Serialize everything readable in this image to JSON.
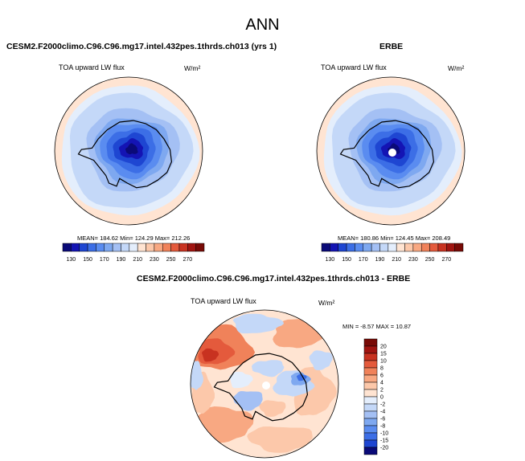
{
  "figure": {
    "title": "ANN",
    "units": "W/m²"
  },
  "panels": {
    "model": {
      "title": "CESM2.F2000climo.C96.C96.mg17.intel.432pes.1thrds.ch013 (yrs 1)",
      "variable": "TOA upward LW flux",
      "stats": "MEAN= 184.62  Min= 124.29  Max= 212.26"
    },
    "obs": {
      "title": "ERBE",
      "variable": "TOA upward LW flux",
      "stats": "MEAN= 180.86  Min= 124.45  Max= 208.49"
    },
    "diff": {
      "title": "CESM2.F2000climo.C96.C96.mg17.intel.432pes.1thrds.ch013 - ERBE",
      "variable": "TOA upward LW flux",
      "stats": "MIN = -8.57 MAX = 10.87"
    }
  },
  "chart_data": [
    {
      "type": "heatmap",
      "projection": "south-polar-stereographic",
      "title": "CESM2.F2000climo.C96.C96.mg17.intel.432pes.1thrds.ch013 (yrs 1)",
      "variable": "TOA upward LW flux",
      "units": "W/m²",
      "mean": 184.62,
      "min": 124.29,
      "max": 212.26,
      "colorbar_ticks": [
        "130",
        "150",
        "170",
        "190",
        "210",
        "230",
        "250",
        "270"
      ],
      "colorbar_colors": [
        "#0a0a78",
        "#1414b4",
        "#1e46d2",
        "#3c6ee6",
        "#5a8cf0",
        "#7ea8f0",
        "#a4c0f4",
        "#c4d8f8",
        "#e4eefc",
        "#ffe4d2",
        "#fcc8aa",
        "#f8a882",
        "#f0825a",
        "#e45a3c",
        "#c83220",
        "#a01410",
        "#780a06"
      ]
    },
    {
      "type": "heatmap",
      "projection": "south-polar-stereographic",
      "title": "ERBE",
      "variable": "TOA upward LW flux",
      "units": "W/m²",
      "mean": 180.86,
      "min": 124.45,
      "max": 208.49,
      "colorbar_ticks": [
        "130",
        "150",
        "170",
        "190",
        "210",
        "230",
        "250",
        "270"
      ],
      "colorbar_colors": [
        "#0a0a78",
        "#1414b4",
        "#1e46d2",
        "#3c6ee6",
        "#5a8cf0",
        "#7ea8f0",
        "#a4c0f4",
        "#c4d8f8",
        "#e4eefc",
        "#ffe4d2",
        "#fcc8aa",
        "#f8a882",
        "#f0825a",
        "#e45a3c",
        "#c83220",
        "#a01410",
        "#780a06"
      ]
    },
    {
      "type": "heatmap",
      "projection": "south-polar-stereographic",
      "title": "CESM2.F2000climo.C96.C96.mg17.intel.432pes.1thrds.ch013 - ERBE",
      "variable": "TOA upward LW flux",
      "units": "W/m²",
      "min": -8.57,
      "max": 10.87,
      "colorbar_ticks": [
        "20",
        "15",
        "10",
        "8",
        "6",
        "4",
        "2",
        "0",
        "-2",
        "-4",
        "-6",
        "-8",
        "-10",
        "-15",
        "-20"
      ],
      "colorbar_colors": [
        "#780a06",
        "#a01410",
        "#c83220",
        "#e45a3c",
        "#f0825a",
        "#f8a882",
        "#fcc8aa",
        "#ffe4d2",
        "#e4eefc",
        "#c4d8f8",
        "#a4c0f4",
        "#7ea8f0",
        "#5a8cf0",
        "#3c6ee6",
        "#1e46d2",
        "#0a0a78"
      ]
    }
  ]
}
